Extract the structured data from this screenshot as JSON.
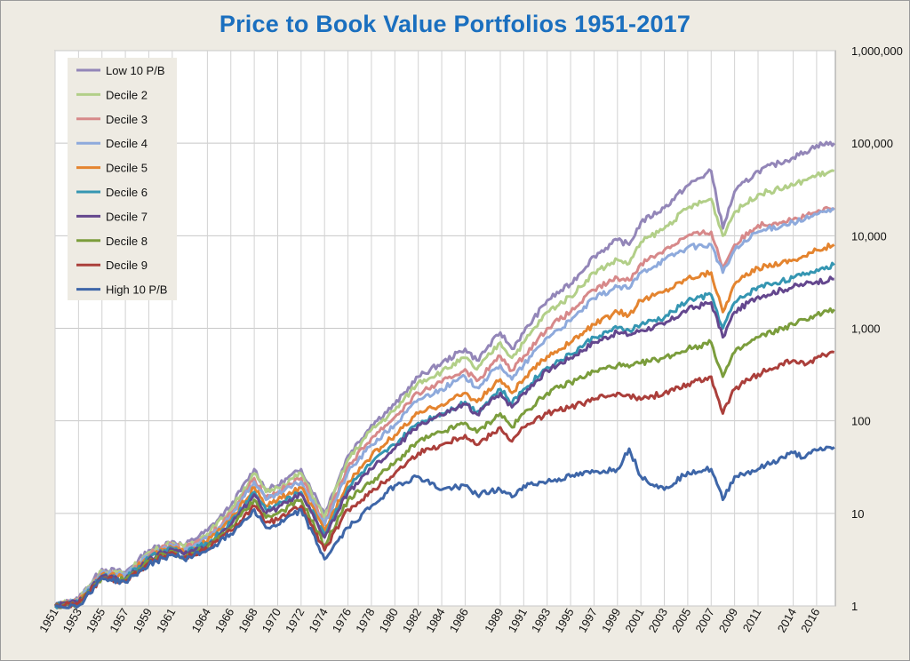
{
  "chart_data": {
    "type": "line",
    "title": "Price to Book Value Portfolios 1951-2017",
    "y_scale": "log",
    "ylim": [
      1,
      1000000
    ],
    "xlim": [
      1951,
      2017.6
    ],
    "grid": true,
    "legend_position": "top-left",
    "y_tick_labels": [
      "1",
      "10",
      "100",
      "1,000",
      "10,000",
      "100,000",
      "1,000,000"
    ],
    "x_tick_labels": [
      "1951",
      "1953",
      "1955",
      "1957",
      "1959",
      "1961",
      "1964",
      "1966",
      "1968",
      "1970",
      "1972",
      "1974",
      "1976",
      "1978",
      "1980",
      "1982",
      "1984",
      "1986",
      "1989",
      "1991",
      "1993",
      "1995",
      "1997",
      "1999",
      "2001",
      "2003",
      "2005",
      "2007",
      "2009",
      "2011",
      "2014",
      "2016"
    ],
    "series": [
      {
        "name": "Low 10 P/B",
        "color": "#9386b8",
        "x": [
          1951,
          1953,
          1955,
          1957,
          1959,
          1961,
          1962,
          1964,
          1966,
          1968,
          1969,
          1970,
          1972,
          1974,
          1976,
          1978,
          1980,
          1982,
          1984,
          1986,
          1987,
          1989,
          1990,
          1991,
          1993,
          1995,
          1997,
          1999,
          2000,
          2001,
          2003,
          2005,
          2007,
          2008,
          2009,
          2011,
          2014,
          2015,
          2016,
          2017.5
        ],
        "values": [
          1,
          1.2,
          2.5,
          2.3,
          4,
          5,
          4.5,
          6.5,
          12,
          30,
          18,
          20,
          30,
          10,
          42,
          90,
          150,
          300,
          420,
          600,
          450,
          900,
          600,
          900,
          2000,
          3000,
          6000,
          9000,
          8000,
          14000,
          20000,
          35000,
          50000,
          12000,
          30000,
          50000,
          70000,
          80000,
          95000,
          100000
        ]
      },
      {
        "name": "Decile 2",
        "color": "#b2cf88",
        "x": [
          1951,
          1953,
          1955,
          1957,
          1959,
          1961,
          1962,
          1964,
          1966,
          1968,
          1969,
          1970,
          1972,
          1974,
          1976,
          1978,
          1980,
          1982,
          1984,
          1986,
          1987,
          1989,
          1990,
          1991,
          1993,
          1995,
          1997,
          1999,
          2000,
          2001,
          2003,
          2005,
          2007,
          2008,
          2009,
          2011,
          2014,
          2015,
          2016,
          2017.5
        ],
        "values": [
          1,
          1.2,
          2.4,
          2.2,
          3.8,
          4.8,
          4.3,
          6,
          11,
          27,
          17,
          19,
          27,
          9,
          38,
          80,
          130,
          260,
          340,
          480,
          360,
          700,
          480,
          700,
          1500,
          2200,
          4000,
          5500,
          5000,
          8500,
          12000,
          20000,
          25000,
          10000,
          18000,
          28000,
          35000,
          40000,
          45000,
          50000
        ]
      },
      {
        "name": "Decile 3",
        "color": "#d7898a",
        "x": [
          1951,
          1953,
          1955,
          1957,
          1959,
          1961,
          1962,
          1964,
          1966,
          1968,
          1969,
          1970,
          1972,
          1974,
          1976,
          1978,
          1980,
          1982,
          1984,
          1986,
          1987,
          1989,
          1990,
          1991,
          1993,
          1995,
          1997,
          1999,
          2000,
          2001,
          2003,
          2005,
          2007,
          2008,
          2009,
          2011,
          2014,
          2015,
          2016,
          2017.5
        ],
        "values": [
          1,
          1.15,
          2.3,
          2.1,
          3.6,
          4.6,
          4.1,
          5.5,
          10,
          24,
          15,
          17,
          24,
          8,
          32,
          65,
          110,
          200,
          260,
          360,
          270,
          500,
          350,
          500,
          1000,
          1500,
          2600,
          3500,
          3300,
          5000,
          7000,
          10000,
          11000,
          4500,
          8000,
          13000,
          15000,
          16000,
          18000,
          20000
        ]
      },
      {
        "name": "Decile 4",
        "color": "#8eaadc",
        "x": [
          1951,
          1953,
          1955,
          1957,
          1959,
          1961,
          1962,
          1964,
          1966,
          1968,
          1969,
          1970,
          1972,
          1974,
          1976,
          1978,
          1980,
          1982,
          1984,
          1986,
          1987,
          1989,
          1990,
          1991,
          1993,
          1995,
          1997,
          1999,
          2000,
          2001,
          2003,
          2005,
          2007,
          2008,
          2009,
          2011,
          2014,
          2015,
          2016,
          2017.5
        ],
        "values": [
          1,
          1.15,
          2.3,
          2.1,
          3.5,
          4.5,
          4,
          5.3,
          9.5,
          22,
          14,
          16,
          22,
          7.5,
          28,
          55,
          90,
          170,
          220,
          300,
          230,
          400,
          280,
          400,
          800,
          1200,
          2100,
          2800,
          2700,
          4000,
          5500,
          7500,
          8000,
          4000,
          7000,
          11000,
          14000,
          15000,
          17000,
          19000
        ]
      },
      {
        "name": "Decile 5",
        "color": "#e4842f",
        "x": [
          1951,
          1953,
          1955,
          1957,
          1959,
          1961,
          1962,
          1964,
          1966,
          1968,
          1969,
          1970,
          1972,
          1974,
          1976,
          1978,
          1980,
          1982,
          1984,
          1986,
          1987,
          1989,
          1990,
          1991,
          1993,
          1995,
          1997,
          1999,
          2000,
          2001,
          2003,
          2005,
          2007,
          2008,
          2009,
          2011,
          2014,
          2015,
          2016,
          2017.5
        ],
        "values": [
          1,
          1.1,
          2.2,
          2,
          3.4,
          4.3,
          3.8,
          5,
          8.5,
          19,
          12,
          14,
          19,
          6.5,
          22,
          42,
          70,
          120,
          150,
          200,
          160,
          280,
          200,
          280,
          500,
          700,
          1100,
          1500,
          1400,
          2000,
          2500,
          3500,
          4000,
          1500,
          3000,
          4500,
          5500,
          6000,
          7000,
          8000
        ]
      },
      {
        "name": "Decile 6",
        "color": "#3596b2",
        "x": [
          1951,
          1953,
          1955,
          1957,
          1959,
          1961,
          1962,
          1964,
          1966,
          1968,
          1969,
          1970,
          1972,
          1974,
          1976,
          1978,
          1980,
          1982,
          1984,
          1986,
          1987,
          1989,
          1990,
          1991,
          1993,
          1995,
          1997,
          1999,
          2000,
          2001,
          2003,
          2005,
          2007,
          2008,
          2009,
          2011,
          2014,
          2015,
          2016,
          2017.5
        ],
        "values": [
          1,
          1.1,
          2.1,
          2,
          3.3,
          4.2,
          3.7,
          4.7,
          8,
          17,
          11,
          12.5,
          17,
          6,
          19,
          35,
          55,
          95,
          120,
          160,
          125,
          220,
          155,
          220,
          380,
          520,
          800,
          1000,
          950,
          1100,
          1300,
          2000,
          2300,
          1000,
          1900,
          2800,
          3500,
          3800,
          4300,
          4800
        ]
      },
      {
        "name": "Decile 7",
        "color": "#64478e",
        "x": [
          1951,
          1953,
          1955,
          1957,
          1959,
          1961,
          1962,
          1964,
          1966,
          1968,
          1969,
          1970,
          1972,
          1974,
          1976,
          1978,
          1980,
          1982,
          1984,
          1986,
          1987,
          1989,
          1990,
          1991,
          1993,
          1995,
          1997,
          1999,
          2000,
          2001,
          2003,
          2005,
          2007,
          2008,
          2009,
          2011,
          2014,
          2015,
          2016,
          2017.5
        ],
        "values": [
          1,
          1.1,
          2.1,
          1.9,
          3.2,
          4.1,
          3.6,
          4.5,
          7.5,
          16,
          10,
          11.5,
          16,
          5.5,
          17,
          30,
          50,
          90,
          115,
          150,
          118,
          200,
          140,
          200,
          350,
          480,
          700,
          900,
          850,
          950,
          1100,
          1600,
          1900,
          800,
          1500,
          2200,
          2800,
          3000,
          3200,
          3400
        ]
      },
      {
        "name": "Decile 8",
        "color": "#7b9d3c",
        "x": [
          1951,
          1953,
          1955,
          1957,
          1959,
          1961,
          1962,
          1964,
          1966,
          1968,
          1969,
          1970,
          1972,
          1974,
          1976,
          1978,
          1980,
          1982,
          1984,
          1986,
          1987,
          1989,
          1990,
          1991,
          1993,
          1995,
          1997,
          1999,
          2000,
          2001,
          2003,
          2005,
          2007,
          2008,
          2009,
          2011,
          2014,
          2015,
          2016,
          2017.5
        ],
        "values": [
          1,
          1.05,
          2,
          1.9,
          3,
          3.9,
          3.4,
          4.3,
          7,
          14,
          9,
          10,
          14,
          4.5,
          14,
          22,
          35,
          60,
          75,
          95,
          75,
          120,
          85,
          120,
          200,
          260,
          340,
          400,
          380,
          420,
          480,
          600,
          700,
          300,
          550,
          800,
          1100,
          1250,
          1400,
          1600
        ]
      },
      {
        "name": "Decile 9",
        "color": "#ab3f3b",
        "x": [
          1951,
          1953,
          1955,
          1957,
          1959,
          1961,
          1962,
          1964,
          1966,
          1968,
          1969,
          1970,
          1972,
          1974,
          1976,
          1978,
          1980,
          1982,
          1984,
          1986,
          1987,
          1989,
          1990,
          1991,
          1993,
          1995,
          1997,
          1999,
          2000,
          2001,
          2003,
          2005,
          2007,
          2008,
          2009,
          2011,
          2014,
          2015,
          2016,
          2017.5
        ],
        "values": [
          1,
          1.05,
          2,
          1.85,
          2.9,
          3.8,
          3.3,
          4.1,
          6.5,
          12,
          8,
          8.5,
          12,
          4,
          11,
          17,
          27,
          45,
          55,
          70,
          55,
          85,
          60,
          85,
          120,
          140,
          170,
          200,
          190,
          170,
          200,
          250,
          300,
          120,
          220,
          320,
          450,
          400,
          480,
          550
        ]
      },
      {
        "name": "High 10 P/B",
        "color": "#3e66a8",
        "x": [
          1951,
          1953,
          1955,
          1957,
          1959,
          1961,
          1962,
          1964,
          1966,
          1968,
          1969,
          1970,
          1972,
          1974,
          1976,
          1978,
          1980,
          1982,
          1984,
          1986,
          1987,
          1989,
          1990,
          1991,
          1993,
          1995,
          1997,
          1999,
          2000,
          2001,
          2003,
          2005,
          2007,
          2008,
          2009,
          2011,
          2014,
          2015,
          2016,
          2017.5
        ],
        "values": [
          1,
          1,
          2,
          1.8,
          2.8,
          3.6,
          3.2,
          4,
          6,
          11,
          7,
          7.5,
          11,
          3.2,
          7,
          12,
          20,
          25,
          18,
          20,
          16,
          18,
          15,
          20,
          22,
          25,
          28,
          30,
          50,
          25,
          18,
          28,
          30,
          14,
          25,
          30,
          45,
          40,
          48,
          52
        ]
      }
    ]
  }
}
